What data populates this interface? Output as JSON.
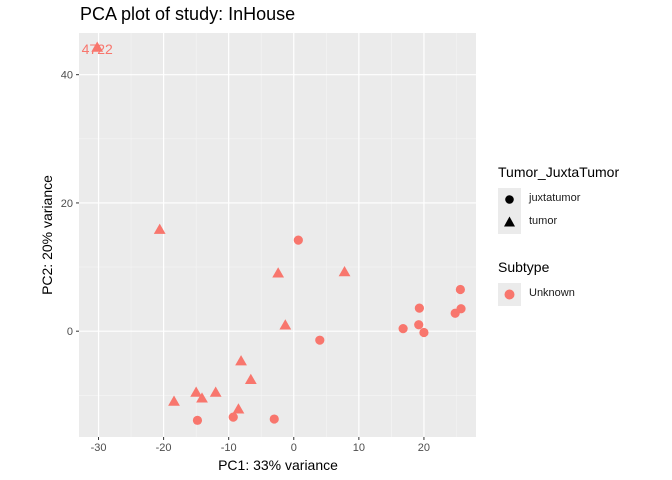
{
  "chart_data": {
    "type": "scatter",
    "title": "PCA plot of study: InHouse",
    "xlabel": "PC1: 33% variance",
    "ylabel": "PC2: 20% variance",
    "xlim": [
      -33,
      28
    ],
    "ylim": [
      -16.5,
      46.5
    ],
    "x_ticks": [
      -30,
      -20,
      -10,
      0,
      10,
      20
    ],
    "y_ticks": [
      0,
      20,
      40
    ],
    "grid": true,
    "point_color": "#F8766D",
    "annotations": [
      {
        "text": "4722",
        "x": -30.2,
        "y": 43.2
      }
    ],
    "legends": [
      {
        "title": "Tumor_JuxtaTumor",
        "items": [
          {
            "label": "juxtatumor",
            "shape": "circle"
          },
          {
            "label": "tumor",
            "shape": "triangle"
          }
        ]
      },
      {
        "title": "Subtype",
        "items": [
          {
            "label": "Unknown",
            "shape": "circle",
            "color": "#F8766D"
          }
        ]
      }
    ],
    "series": [
      {
        "name": "juxtatumor",
        "shape": "circle",
        "points": [
          {
            "x": 0.7,
            "y": 14.2
          },
          {
            "x": 4.0,
            "y": -1.4
          },
          {
            "x": 16.8,
            "y": 0.4
          },
          {
            "x": 19.3,
            "y": 3.6
          },
          {
            "x": 19.2,
            "y": 1.0
          },
          {
            "x": 20.0,
            "y": -0.2
          },
          {
            "x": 24.8,
            "y": 2.8
          },
          {
            "x": 25.6,
            "y": 6.5
          },
          {
            "x": 25.7,
            "y": 3.5
          },
          {
            "x": -14.8,
            "y": -13.9
          },
          {
            "x": -9.3,
            "y": -13.4
          },
          {
            "x": -3.0,
            "y": -13.7
          }
        ]
      },
      {
        "name": "tumor",
        "shape": "triangle",
        "points": [
          {
            "x": -30.2,
            "y": 44.2
          },
          {
            "x": -20.6,
            "y": 15.8
          },
          {
            "x": -2.4,
            "y": 9.0
          },
          {
            "x": 7.8,
            "y": 9.2
          },
          {
            "x": -1.3,
            "y": 0.9
          },
          {
            "x": -8.1,
            "y": -4.7
          },
          {
            "x": -6.6,
            "y": -7.6
          },
          {
            "x": -18.4,
            "y": -11.0
          },
          {
            "x": -15.0,
            "y": -9.6
          },
          {
            "x": -14.1,
            "y": -10.5
          },
          {
            "x": -12.0,
            "y": -9.6
          },
          {
            "x": -8.5,
            "y": -12.2
          }
        ]
      }
    ]
  }
}
